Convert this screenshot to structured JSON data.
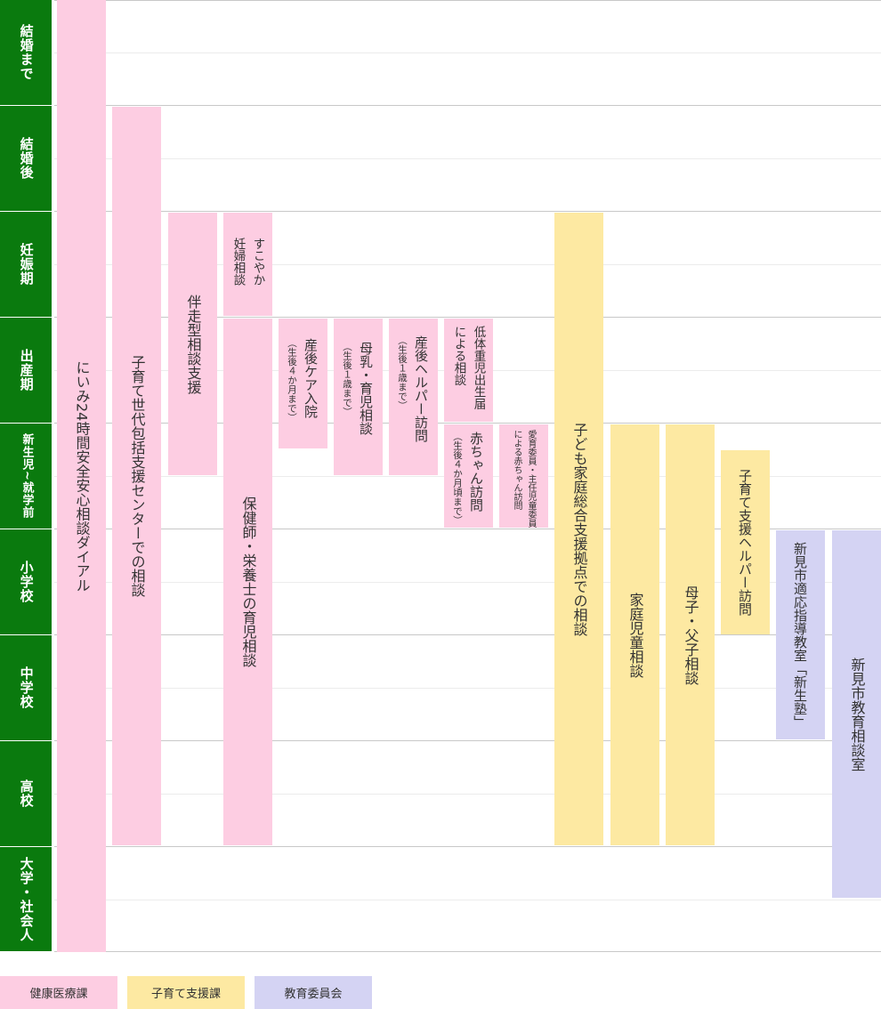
{
  "stages": [
    {
      "id": "s1",
      "label": "結婚まで"
    },
    {
      "id": "s2",
      "label": "結婚後"
    },
    {
      "id": "s3",
      "label": "妊娠期"
    },
    {
      "id": "s4",
      "label": "出産期"
    },
    {
      "id": "s5",
      "label": "新生児~就学前"
    },
    {
      "id": "s6",
      "label": "小学校"
    },
    {
      "id": "s7",
      "label": "中学校"
    },
    {
      "id": "s8",
      "label": "高校"
    },
    {
      "id": "s9",
      "label": "大学・社会人"
    }
  ],
  "services": [
    {
      "id": "dial",
      "label": "にいみ24時間安全安心相談ダイアル",
      "dept": "健康医療課"
    },
    {
      "id": "center",
      "label": "子育て世代包括支援センターでの相談",
      "dept": "健康医療課"
    },
    {
      "id": "banso",
      "label": "伴走型相談支援",
      "dept": "健康医療課"
    },
    {
      "id": "sukoyaka",
      "label": "すこやか妊婦相談",
      "lines": [
        "すこやか",
        "妊婦相談"
      ],
      "dept": "健康医療課"
    },
    {
      "id": "hokenshi",
      "label": "保健師・栄養士の育児相談",
      "dept": "健康医療課"
    },
    {
      "id": "care",
      "label": "産後ケア入院",
      "note": "（生後４か月まで）",
      "dept": "健康医療課"
    },
    {
      "id": "bonyu",
      "label": "母乳・育児相談",
      "note": "（生後１歳まで）",
      "dept": "健康医療課"
    },
    {
      "id": "helper",
      "label": "産後ヘルパー訪問",
      "note": "（生後１歳まで）",
      "dept": "健康医療課"
    },
    {
      "id": "teitaiju",
      "label": "低体重児出生届による相談",
      "lines": [
        "低体重児出生届",
        "による相談"
      ],
      "dept": "健康医療課"
    },
    {
      "id": "akachan",
      "label": "赤ちゃん訪問",
      "note": "（生後４か月頃まで）",
      "dept": "健康医療課"
    },
    {
      "id": "aiiku",
      "label": "愛育委員・主任児童委員による赤ちゃん訪問",
      "lines": [
        "愛育委員・主任児童委員",
        "による赤ちゃん訪問"
      ],
      "dept": "健康医療課"
    },
    {
      "id": "kodomo",
      "label": "子ども家庭総合支援拠点での相談",
      "dept": "子育て支援課"
    },
    {
      "id": "katei",
      "label": "家庭児童相談",
      "dept": "子育て支援課"
    },
    {
      "id": "boshi",
      "label": "母子・父子相談",
      "dept": "子育て支援課"
    },
    {
      "id": "kosodate_helper",
      "label": "子育て支援ヘルパー訪問",
      "dept": "子育て支援課"
    },
    {
      "id": "tekio",
      "label": "新見市適応指導教室「新生塾」",
      "dept": "教育委員会"
    },
    {
      "id": "kyoiku",
      "label": "新見市教育相談室",
      "dept": "教育委員会"
    }
  ],
  "legend": [
    {
      "label": "健康医療課",
      "color": "#fdcde2"
    },
    {
      "label": "子育て支援課",
      "color": "#fde9a2"
    },
    {
      "label": "教育委員会",
      "color": "#d4d3f3"
    }
  ],
  "colors": {
    "stage_bg": "#0a7a0e",
    "health": "#fdcde2",
    "childcare": "#fde9a2",
    "education": "#d4d3f3"
  }
}
